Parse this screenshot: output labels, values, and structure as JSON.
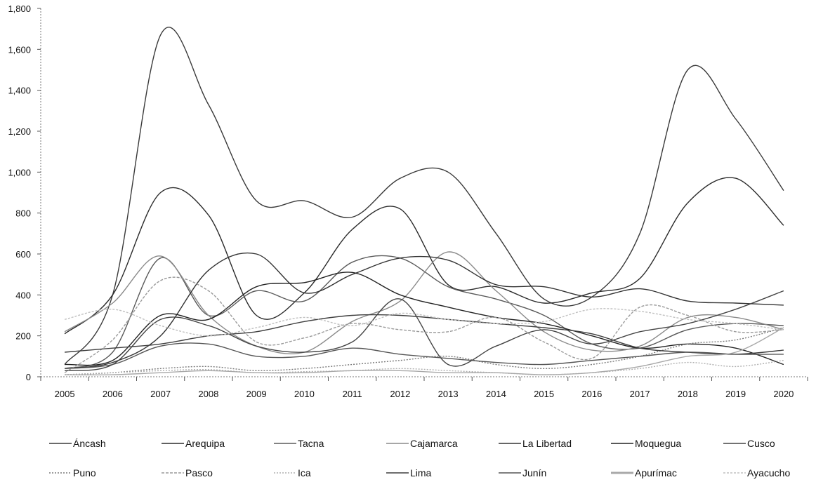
{
  "chart_data": {
    "type": "line",
    "title": "",
    "xlabel": "",
    "ylabel": "",
    "x": [
      "2005",
      "2006",
      "2007",
      "2008",
      "2009",
      "2010",
      "2011",
      "2012",
      "2013",
      "2014",
      "2015",
      "2016",
      "2017",
      "2018",
      "2019",
      "2020"
    ],
    "ylim": [
      0,
      1800
    ],
    "yticks": [
      0,
      200,
      400,
      600,
      800,
      1000,
      1200,
      1400,
      1600,
      1800
    ],
    "ytick_labels": [
      "0",
      "200",
      "400",
      "600",
      "800",
      "1,000",
      "1,200",
      "1,400",
      "1,600",
      "1,800"
    ],
    "grid": false,
    "legend_position": "bottom",
    "series": [
      {
        "name": "Áncash",
        "color": "#3a3a3a",
        "values": [
          60,
          400,
          1670,
          1330,
          860,
          860,
          780,
          970,
          1000,
          700,
          380,
          390,
          700,
          1500,
          1260,
          910
        ]
      },
      {
        "name": "Arequipa",
        "color": "#2b2b2b",
        "values": [
          210,
          400,
          900,
          790,
          300,
          410,
          720,
          820,
          450,
          440,
          360,
          410,
          480,
          850,
          970,
          740
        ]
      },
      {
        "name": "Tacna",
        "color": "#5a5a5a",
        "values": [
          40,
          120,
          580,
          300,
          420,
          370,
          560,
          580,
          440,
          380,
          300,
          160,
          140,
          230,
          260,
          250
        ]
      },
      {
        "name": "Cajamarca",
        "color": "#8a8a8a",
        "values": [
          220,
          360,
          590,
          300,
          150,
          120,
          270,
          370,
          610,
          420,
          220,
          130,
          150,
          290,
          290,
          230
        ]
      },
      {
        "name": "La Libertad",
        "color": "#333333",
        "values": [
          40,
          70,
          200,
          520,
          600,
          410,
          500,
          580,
          570,
          450,
          440,
          390,
          430,
          370,
          360,
          350
        ]
      },
      {
        "name": "Moquegua",
        "color": "#222222",
        "values": [
          60,
          80,
          300,
          280,
          440,
          460,
          510,
          400,
          340,
          290,
          260,
          200,
          140,
          160,
          140,
          60
        ]
      },
      {
        "name": "Cusco",
        "color": "#444444",
        "values": [
          30,
          60,
          280,
          250,
          150,
          120,
          170,
          380,
          60,
          150,
          230,
          160,
          220,
          260,
          330,
          420
        ]
      },
      {
        "name": "Puno",
        "color": "#7a7a7a",
        "values": [
          10,
          20,
          40,
          50,
          30,
          40,
          60,
          80,
          100,
          60,
          40,
          60,
          100,
          160,
          180,
          240
        ]
      },
      {
        "name": "Pasco",
        "color": "#9a9a9a",
        "values": [
          20,
          180,
          470,
          420,
          170,
          190,
          260,
          230,
          220,
          290,
          170,
          90,
          340,
          300,
          220,
          230
        ]
      },
      {
        "name": "Ica",
        "color": "#b0b0b0",
        "values": [
          10,
          20,
          30,
          35,
          20,
          25,
          30,
          40,
          30,
          20,
          10,
          20,
          40,
          70,
          50,
          80
        ]
      },
      {
        "name": "Lima",
        "color": "#3f3f3f",
        "values": [
          120,
          140,
          160,
          200,
          220,
          270,
          300,
          300,
          280,
          260,
          240,
          210,
          140,
          120,
          110,
          130
        ]
      },
      {
        "name": "Junín",
        "color": "#555555",
        "values": [
          40,
          60,
          150,
          160,
          100,
          100,
          140,
          110,
          90,
          70,
          60,
          80,
          100,
          120,
          110,
          110
        ]
      },
      {
        "name": "Apurímac",
        "color": "#a8a8a8",
        "values": [
          10,
          10,
          20,
          30,
          20,
          20,
          30,
          30,
          20,
          20,
          10,
          20,
          50,
          100,
          120,
          240
        ]
      },
      {
        "name": "Ayacucho",
        "color": "#c0c0c0",
        "values": [
          280,
          330,
          250,
          200,
          240,
          290,
          250,
          310,
          280,
          260,
          270,
          330,
          320,
          280,
          260,
          230
        ]
      }
    ]
  }
}
